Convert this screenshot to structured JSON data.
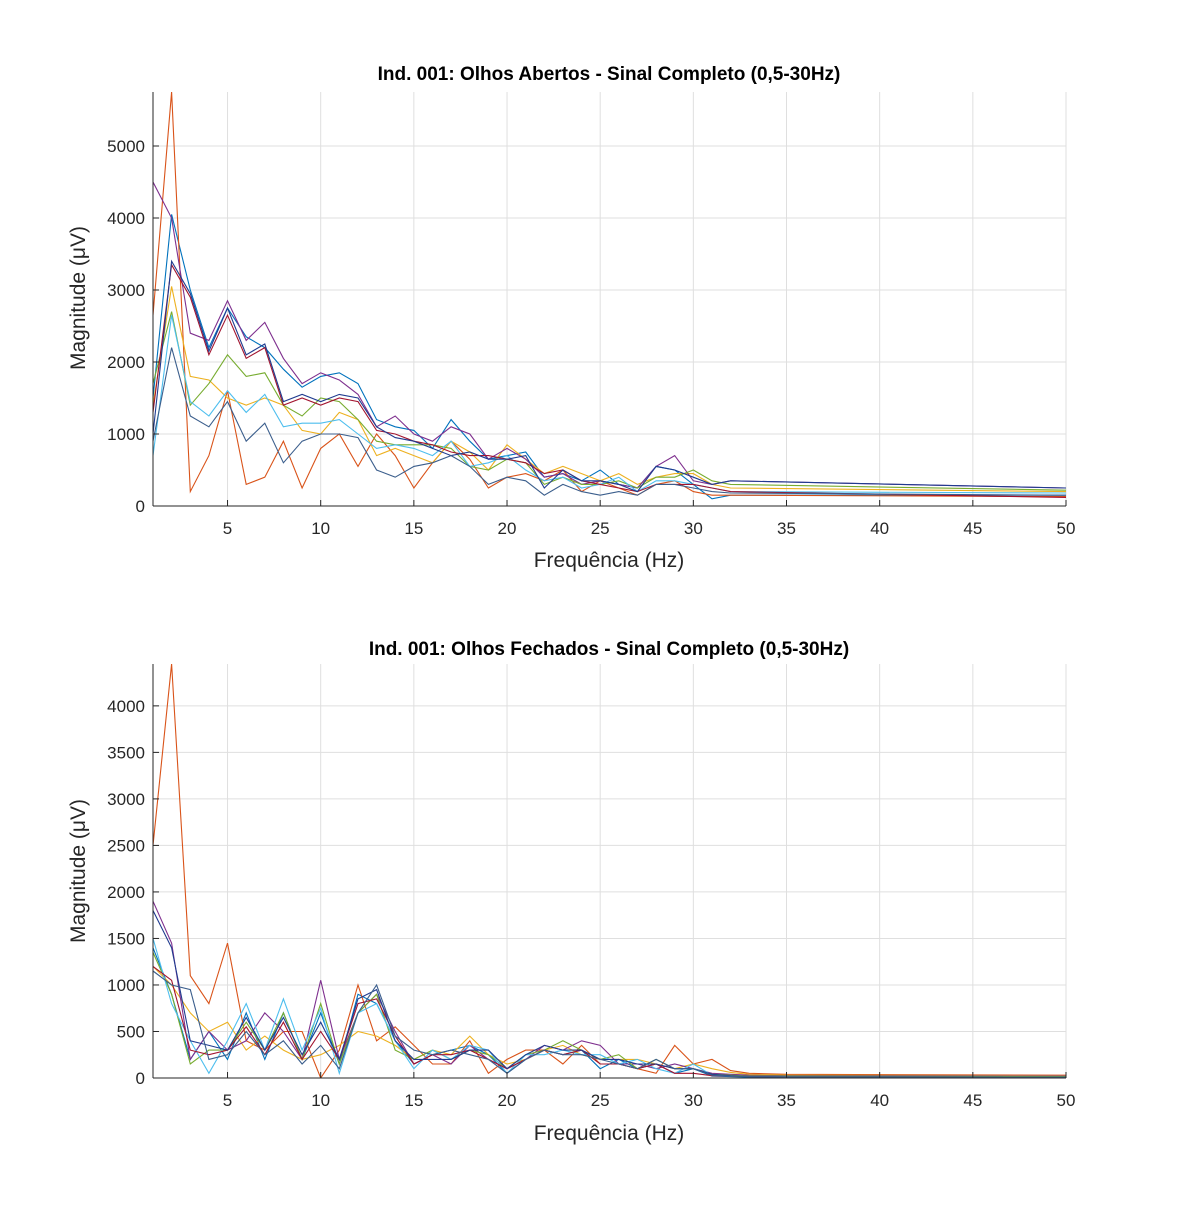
{
  "colors": [
    "#0072BD",
    "#D95319",
    "#EDB120",
    "#7E2F8E",
    "#77AC30",
    "#4DBEEE",
    "#A2142F"
  ],
  "chart_data": [
    {
      "type": "line",
      "title": "Ind. 001: Olhos Abertos - Sinal Completo (0,5-30Hz)",
      "xlabel": "Frequência (Hz)",
      "ylabel": "Magnitude (μV)",
      "xlim": [
        1,
        50
      ],
      "ylim": [
        0,
        5750
      ],
      "xticks": [
        5,
        10,
        15,
        20,
        25,
        30,
        35,
        40,
        45,
        50
      ],
      "yticks": [
        0,
        1000,
        2000,
        3000,
        4000,
        5000
      ],
      "grid": true,
      "x": [
        1,
        2,
        3,
        4,
        5,
        6,
        7,
        8,
        9,
        10,
        11,
        12,
        13,
        14,
        15,
        16,
        17,
        18,
        19,
        20,
        21,
        22,
        23,
        24,
        25,
        26,
        27,
        28,
        29,
        30,
        31,
        32,
        50
      ],
      "series": [
        {
          "color": "#0072BD",
          "values": [
            1500,
            4050,
            3000,
            2200,
            2750,
            2350,
            2200,
            1900,
            1650,
            1800,
            1850,
            1700,
            1200,
            1100,
            1050,
            800,
            1200,
            900,
            650,
            700,
            750,
            400,
            450,
            350,
            500,
            300,
            250,
            550,
            500,
            300,
            100,
            150,
            150
          ]
        },
        {
          "color": "#D95319",
          "values": [
            2650,
            5750,
            200,
            700,
            1600,
            300,
            400,
            900,
            250,
            800,
            1000,
            550,
            1000,
            700,
            250,
            600,
            900,
            650,
            250,
            400,
            450,
            350,
            500,
            200,
            350,
            250,
            150,
            300,
            350,
            200,
            150,
            150,
            130
          ]
        },
        {
          "color": "#EDB120",
          "values": [
            1400,
            3050,
            1800,
            1750,
            1500,
            1400,
            1500,
            1400,
            1050,
            1000,
            1300,
            1200,
            700,
            800,
            700,
            600,
            900,
            750,
            500,
            850,
            650,
            450,
            550,
            450,
            350,
            450,
            300,
            400,
            450,
            450,
            300,
            250,
            200
          ]
        },
        {
          "color": "#7E2F8E",
          "values": [
            4500,
            4000,
            2400,
            2300,
            2850,
            2300,
            2550,
            2050,
            1700,
            1850,
            1750,
            1550,
            1100,
            1250,
            1000,
            900,
            1100,
            1000,
            650,
            800,
            650,
            400,
            450,
            300,
            350,
            300,
            250,
            550,
            700,
            350,
            300,
            350,
            250
          ]
        },
        {
          "color": "#77AC30",
          "values": [
            1700,
            2700,
            1400,
            1700,
            2100,
            1800,
            1850,
            1400,
            1250,
            1500,
            1450,
            1200,
            900,
            850,
            850,
            850,
            800,
            550,
            500,
            650,
            600,
            300,
            400,
            300,
            300,
            350,
            250,
            400,
            400,
            500,
            350,
            300,
            220
          ]
        },
        {
          "color": "#4DBEEE",
          "values": [
            700,
            2650,
            1450,
            1250,
            1600,
            1300,
            1550,
            1100,
            1150,
            1150,
            1200,
            1000,
            800,
            850,
            800,
            700,
            900,
            550,
            600,
            700,
            500,
            350,
            400,
            250,
            300,
            400,
            200,
            350,
            350,
            300,
            250,
            200,
            180
          ]
        },
        {
          "color": "#A2142F",
          "values": [
            1300,
            3350,
            2900,
            2100,
            2650,
            2050,
            2200,
            1400,
            1500,
            1400,
            1500,
            1450,
            1050,
            1000,
            900,
            850,
            750,
            700,
            700,
            650,
            600,
            450,
            500,
            350,
            300,
            250,
            200,
            300,
            300,
            300,
            250,
            200,
            120
          ]
        },
        {
          "color": "#1F3B8F",
          "values": [
            1000,
            3400,
            2950,
            2150,
            2750,
            2100,
            2250,
            1450,
            1550,
            1450,
            1550,
            1500,
            1100,
            950,
            900,
            800,
            700,
            750,
            650,
            650,
            700,
            250,
            500,
            350,
            350,
            300,
            200,
            550,
            500,
            400,
            300,
            350,
            250
          ]
        },
        {
          "color": "#3B5E8C",
          "values": [
            900,
            2200,
            1250,
            1100,
            1450,
            900,
            1150,
            600,
            900,
            1000,
            1000,
            950,
            500,
            400,
            550,
            600,
            700,
            550,
            300,
            400,
            350,
            150,
            300,
            200,
            150,
            200,
            150,
            300,
            300,
            250,
            200,
            180,
            150
          ]
        }
      ]
    },
    {
      "type": "line",
      "title": "Ind. 001: Olhos Fechados - Sinal Completo (0,5-30Hz)",
      "xlabel": "Frequência (Hz)",
      "ylabel": "Magnitude (μV)",
      "xlim": [
        1,
        50
      ],
      "ylim": [
        0,
        4450
      ],
      "xticks": [
        5,
        10,
        15,
        20,
        25,
        30,
        35,
        40,
        45,
        50
      ],
      "yticks": [
        0,
        500,
        1000,
        1500,
        2000,
        2500,
        3000,
        3500,
        4000
      ],
      "grid": true,
      "x": [
        1,
        2,
        3,
        4,
        5,
        6,
        7,
        8,
        9,
        10,
        11,
        12,
        13,
        14,
        15,
        16,
        17,
        18,
        19,
        20,
        21,
        22,
        23,
        24,
        25,
        26,
        27,
        28,
        29,
        30,
        31,
        32,
        33,
        35,
        50
      ],
      "series": [
        {
          "color": "#0072BD",
          "values": [
            1400,
            900,
            200,
            500,
            200,
            700,
            200,
            700,
            200,
            700,
            150,
            900,
            800,
            400,
            150,
            250,
            300,
            350,
            250,
            50,
            200,
            300,
            250,
            300,
            100,
            200,
            100,
            150,
            50,
            100,
            20,
            15,
            10,
            10,
            10
          ]
        },
        {
          "color": "#D95319",
          "values": [
            2500,
            4450,
            1100,
            800,
            1450,
            400,
            300,
            500,
            500,
            0,
            300,
            1000,
            400,
            550,
            350,
            150,
            150,
            400,
            50,
            200,
            300,
            300,
            150,
            350,
            150,
            150,
            100,
            50,
            350,
            150,
            200,
            80,
            50,
            40,
            30
          ]
        },
        {
          "color": "#EDB120",
          "values": [
            1200,
            1000,
            700,
            500,
            600,
            300,
            450,
            300,
            200,
            250,
            350,
            500,
            450,
            350,
            200,
            300,
            250,
            450,
            250,
            150,
            200,
            300,
            350,
            250,
            200,
            200,
            200,
            150,
            100,
            150,
            100,
            60,
            40,
            30,
            25
          ]
        },
        {
          "color": "#7E2F8E",
          "values": [
            1900,
            1450,
            200,
            500,
            300,
            400,
            700,
            500,
            200,
            1050,
            200,
            700,
            900,
            500,
            150,
            250,
            150,
            350,
            200,
            100,
            200,
            350,
            300,
            400,
            350,
            150,
            150,
            100,
            150,
            100,
            50,
            40,
            30,
            25,
            20
          ]
        },
        {
          "color": "#77AC30",
          "values": [
            1350,
            900,
            150,
            300,
            300,
            600,
            300,
            700,
            200,
            800,
            150,
            700,
            900,
            300,
            200,
            300,
            200,
            300,
            250,
            100,
            250,
            300,
            400,
            300,
            200,
            250,
            100,
            200,
            100,
            100,
            40,
            30,
            20,
            20,
            15
          ]
        },
        {
          "color": "#4DBEEE",
          "values": [
            1500,
            800,
            400,
            50,
            400,
            800,
            300,
            850,
            300,
            750,
            50,
            700,
            800,
            400,
            100,
            300,
            200,
            350,
            300,
            50,
            250,
            250,
            300,
            250,
            250,
            150,
            200,
            100,
            50,
            150,
            30,
            20,
            15,
            12,
            10
          ]
        },
        {
          "color": "#A2142F",
          "values": [
            1200,
            1050,
            300,
            250,
            300,
            550,
            250,
            600,
            200,
            500,
            200,
            800,
            850,
            450,
            150,
            250,
            250,
            300,
            200,
            100,
            200,
            300,
            250,
            300,
            150,
            150,
            100,
            150,
            50,
            50,
            25,
            20,
            15,
            12,
            10
          ]
        },
        {
          "color": "#1F3B8F",
          "values": [
            1800,
            1400,
            400,
            350,
            300,
            650,
            300,
            650,
            250,
            600,
            200,
            850,
            950,
            400,
            200,
            200,
            200,
            300,
            300,
            100,
            250,
            350,
            300,
            300,
            200,
            200,
            150,
            150,
            100,
            100,
            40,
            25,
            15,
            12,
            10
          ]
        },
        {
          "color": "#3B5E8C",
          "values": [
            1150,
            1000,
            950,
            200,
            250,
            500,
            250,
            400,
            150,
            350,
            100,
            700,
            1000,
            450,
            300,
            250,
            300,
            250,
            200,
            50,
            200,
            300,
            250,
            250,
            200,
            150,
            100,
            200,
            100,
            100,
            30,
            20,
            15,
            12,
            10
          ]
        }
      ]
    }
  ]
}
